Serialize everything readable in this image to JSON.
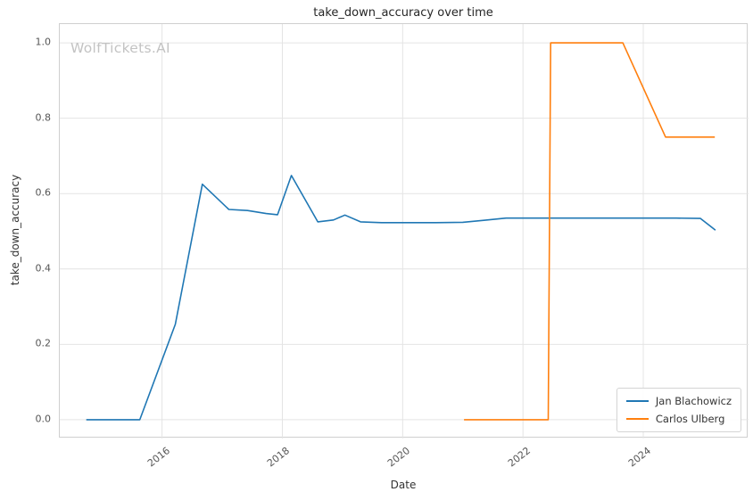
{
  "watermark": "WolfTickets.AI",
  "chart_data": {
    "type": "line",
    "title": "take_down_accuracy over time",
    "xlabel": "Date",
    "ylabel": "take_down_accuracy",
    "xlim": [
      2014.3,
      2025.75
    ],
    "ylim": [
      -0.05,
      1.05
    ],
    "grid": true,
    "legend_position": "lower right",
    "xticks": {
      "values": [
        2016,
        2018,
        2020,
        2022,
        2024
      ],
      "labels": [
        "2016",
        "2018",
        "2020",
        "2022",
        "2024"
      ]
    },
    "yticks": {
      "values": [
        0.0,
        0.2,
        0.4,
        0.6,
        0.8,
        1.0
      ],
      "labels": [
        "0.0",
        "0.2",
        "0.4",
        "0.6",
        "0.8",
        "1.0"
      ]
    },
    "series": [
      {
        "name": "Jan Blachowicz",
        "color": "#1f77b4",
        "x": [
          2014.74,
          2015.63,
          2016.22,
          2016.67,
          2017.11,
          2017.42,
          2017.73,
          2017.92,
          2018.15,
          2018.59,
          2018.85,
          2019.04,
          2019.3,
          2019.65,
          2020.1,
          2020.55,
          2021.0,
          2021.35,
          2021.72,
          2022.1,
          2022.6,
          2023.1,
          2023.6,
          2024.1,
          2024.55,
          2024.95,
          2025.2
        ],
        "y": [
          0.0,
          0.0,
          0.253,
          0.625,
          0.558,
          0.555,
          0.547,
          0.544,
          0.648,
          0.525,
          0.53,
          0.543,
          0.525,
          0.523,
          0.523,
          0.523,
          0.524,
          0.529,
          0.535,
          0.535,
          0.535,
          0.535,
          0.535,
          0.535,
          0.535,
          0.534,
          0.503
        ]
      },
      {
        "name": "Carlos Ulberg",
        "color": "#ff7f0e",
        "x": [
          2021.02,
          2021.5,
          2022.0,
          2022.42,
          2022.46,
          2023.0,
          2023.66,
          2024.37,
          2024.8,
          2025.19
        ],
        "y": [
          0.0,
          0.0,
          0.0,
          0.0,
          1.0,
          1.0,
          1.0,
          0.75,
          0.75,
          0.75
        ]
      }
    ]
  }
}
